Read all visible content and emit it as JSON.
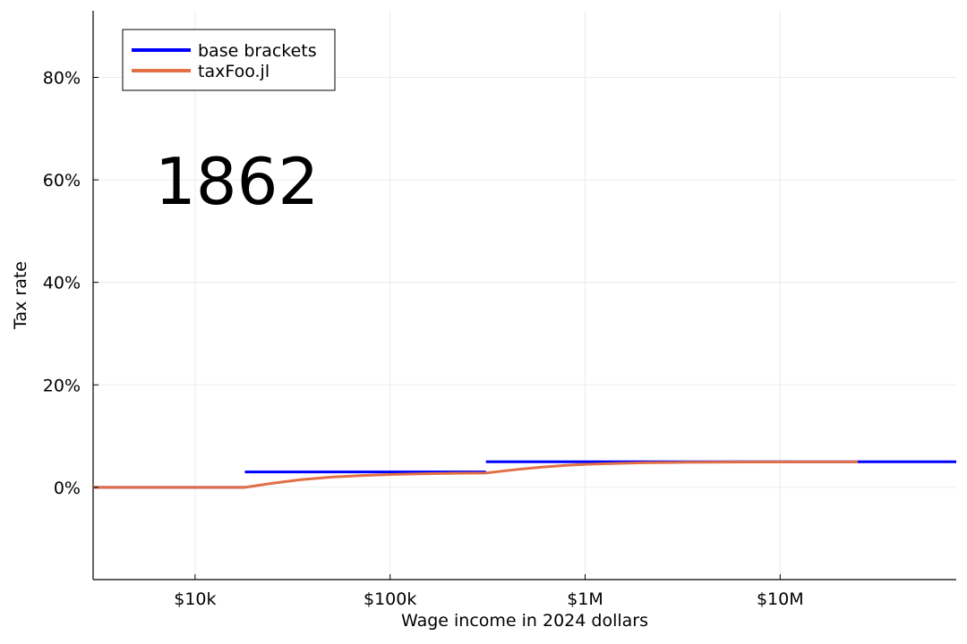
{
  "chart_data": {
    "type": "line",
    "title": "",
    "annotation": "1862",
    "xlabel": "Wage income in 2024 dollars",
    "ylabel": "Tax rate",
    "x_scale": "log10",
    "xlim": [
      3000,
      80000000
    ],
    "ylim": [
      -18,
      93
    ],
    "x_ticks": [
      {
        "value": 10000,
        "label": "$10k"
      },
      {
        "value": 100000,
        "label": "$100k"
      },
      {
        "value": 1000000,
        "label": "$1M"
      },
      {
        "value": 10000000,
        "label": "$10M"
      }
    ],
    "y_ticks": [
      {
        "value": 0,
        "label": "0%"
      },
      {
        "value": 20,
        "label": "20%"
      },
      {
        "value": 40,
        "label": "40%"
      },
      {
        "value": 60,
        "label": "60%"
      },
      {
        "value": 80,
        "label": "80%"
      }
    ],
    "grid": true,
    "legend_position": "top-left",
    "series": [
      {
        "name": "base brackets",
        "color": "#0000ff",
        "segments": [
          [
            [
              3000,
              0
            ],
            [
              18000,
              0
            ]
          ],
          [
            [
              18000,
              3
            ],
            [
              310000,
              3
            ]
          ],
          [
            [
              310000,
              5
            ],
            [
              80000000,
              5
            ]
          ]
        ]
      },
      {
        "name": "taxFoo.jl",
        "color": "#e26f46",
        "segments": [
          [
            [
              3000,
              0
            ],
            [
              18000,
              0
            ],
            [
              25000,
              0.8
            ],
            [
              35000,
              1.5
            ],
            [
              50000,
              2.0
            ],
            [
              70000,
              2.3
            ],
            [
              100000,
              2.5
            ],
            [
              150000,
              2.65
            ],
            [
              220000,
              2.75
            ],
            [
              310000,
              2.8
            ],
            [
              450000,
              3.5
            ],
            [
              600000,
              3.95
            ],
            [
              800000,
              4.3
            ],
            [
              1000000,
              4.5
            ],
            [
              1500000,
              4.7
            ],
            [
              2000000,
              4.8
            ],
            [
              3000000,
              4.87
            ],
            [
              5000000,
              4.92
            ],
            [
              10000000,
              4.96
            ],
            [
              25000000,
              4.98
            ]
          ]
        ]
      }
    ]
  }
}
